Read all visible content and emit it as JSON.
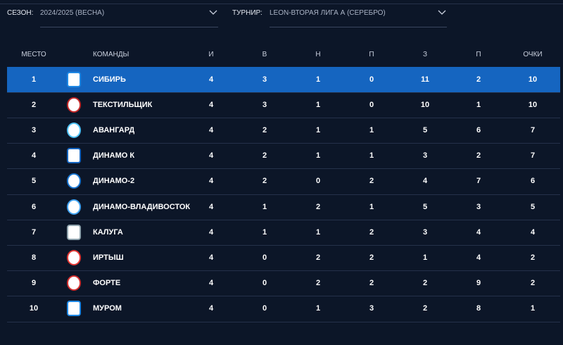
{
  "filters": {
    "season_label": "СЕЗОН:",
    "season_value": "2024/2025 (ВЕСНА)",
    "tournament_label": "ТУРНИР:",
    "tournament_value": "LEON-ВТОРАЯ ЛИГА А (СЕРЕБРО)"
  },
  "table": {
    "header": [
      "МЕСТО",
      "КОМАНДЫ",
      "И",
      "В",
      "Н",
      "П",
      "З",
      "П",
      "ОЧКИ"
    ],
    "rows": [
      [
        1,
        "СИБИРЬ",
        4,
        3,
        1,
        0,
        11,
        2,
        10
      ],
      [
        2,
        "ТЕКСТИЛЬЩИК",
        4,
        3,
        1,
        0,
        10,
        1,
        10
      ],
      [
        3,
        "АВАНГАРД",
        4,
        2,
        1,
        1,
        5,
        6,
        7
      ],
      [
        4,
        "ДИНАМО К",
        4,
        2,
        1,
        1,
        3,
        2,
        7
      ],
      [
        5,
        "ДИНАМО-2",
        4,
        2,
        0,
        2,
        4,
        7,
        6
      ],
      [
        6,
        "ДИНАМО-ВЛАДИВОСТОК",
        4,
        1,
        2,
        1,
        5,
        3,
        5
      ],
      [
        7,
        "КАЛУГА",
        4,
        1,
        1,
        2,
        3,
        4,
        4
      ],
      [
        8,
        "ИРТЫШ",
        4,
        0,
        2,
        2,
        1,
        4,
        2
      ],
      [
        9,
        "ФОРТЕ",
        4,
        0,
        2,
        2,
        2,
        9,
        2
      ],
      [
        10,
        "МУРОМ",
        4,
        0,
        1,
        3,
        2,
        8,
        1
      ]
    ]
  }
}
